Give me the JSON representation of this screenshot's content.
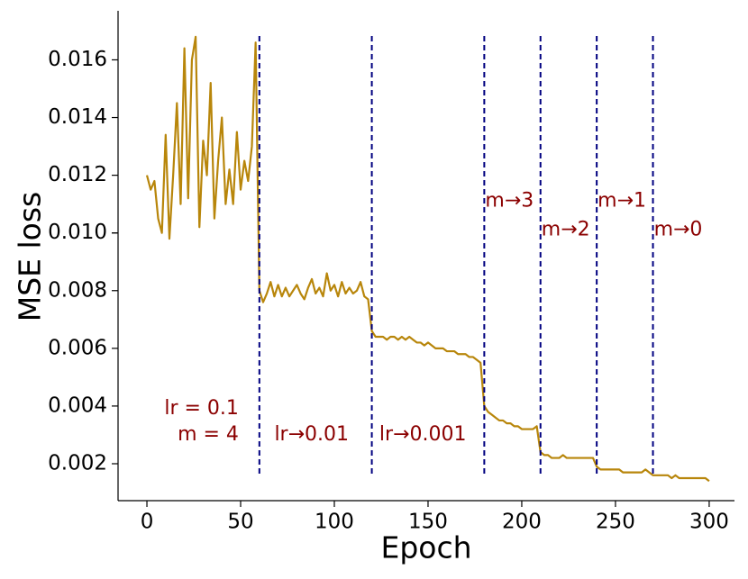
{
  "chart_data": {
    "type": "line",
    "xlabel": "Epoch",
    "ylabel": "MSE loss",
    "x": [
      0,
      2,
      4,
      6,
      8,
      10,
      12,
      14,
      16,
      18,
      20,
      22,
      24,
      26,
      28,
      30,
      32,
      34,
      36,
      38,
      40,
      42,
      44,
      46,
      48,
      50,
      52,
      54,
      56,
      58,
      60,
      62,
      64,
      66,
      68,
      70,
      72,
      74,
      76,
      78,
      80,
      82,
      84,
      86,
      88,
      90,
      92,
      94,
      96,
      98,
      100,
      102,
      104,
      106,
      108,
      110,
      112,
      114,
      116,
      118,
      120,
      122,
      124,
      126,
      128,
      130,
      132,
      134,
      136,
      138,
      140,
      142,
      144,
      146,
      148,
      150,
      152,
      154,
      156,
      158,
      160,
      162,
      164,
      166,
      168,
      170,
      172,
      174,
      176,
      178,
      180,
      182,
      184,
      186,
      188,
      190,
      192,
      194,
      196,
      198,
      200,
      202,
      204,
      206,
      208,
      210,
      212,
      214,
      216,
      218,
      220,
      222,
      224,
      226,
      228,
      230,
      232,
      234,
      236,
      238,
      240,
      242,
      244,
      246,
      248,
      250,
      252,
      254,
      256,
      258,
      260,
      262,
      264,
      266,
      268,
      270,
      272,
      274,
      276,
      278,
      280,
      282,
      284,
      286,
      288,
      290,
      292,
      294,
      296,
      298,
      300
    ],
    "series": [
      {
        "name": "MSE loss",
        "color": "#b8860b",
        "values": [
          0.012,
          0.0115,
          0.0118,
          0.0105,
          0.01,
          0.0134,
          0.0098,
          0.012,
          0.0145,
          0.011,
          0.0164,
          0.0112,
          0.016,
          0.0168,
          0.0102,
          0.0132,
          0.012,
          0.0152,
          0.0105,
          0.0125,
          0.014,
          0.011,
          0.0122,
          0.011,
          0.0135,
          0.0115,
          0.0125,
          0.0118,
          0.013,
          0.0166,
          0.008,
          0.0076,
          0.0079,
          0.0083,
          0.0078,
          0.0082,
          0.0078,
          0.0081,
          0.0078,
          0.008,
          0.0082,
          0.0079,
          0.0077,
          0.0081,
          0.0084,
          0.0079,
          0.0081,
          0.0078,
          0.0086,
          0.008,
          0.0082,
          0.0078,
          0.0083,
          0.0079,
          0.0081,
          0.0079,
          0.008,
          0.0083,
          0.0078,
          0.0077,
          0.0066,
          0.0064,
          0.0064,
          0.0064,
          0.0063,
          0.0064,
          0.0064,
          0.0063,
          0.0064,
          0.0063,
          0.0064,
          0.0063,
          0.0062,
          0.0062,
          0.0061,
          0.0062,
          0.0061,
          0.006,
          0.006,
          0.006,
          0.0059,
          0.0059,
          0.0059,
          0.0058,
          0.0058,
          0.0058,
          0.0057,
          0.0057,
          0.0056,
          0.0055,
          0.004,
          0.0038,
          0.0037,
          0.0036,
          0.0035,
          0.0035,
          0.0034,
          0.0034,
          0.0033,
          0.0033,
          0.0032,
          0.0032,
          0.0032,
          0.0032,
          0.0033,
          0.0024,
          0.0023,
          0.0023,
          0.0022,
          0.0022,
          0.0022,
          0.0023,
          0.0022,
          0.0022,
          0.0022,
          0.0022,
          0.0022,
          0.0022,
          0.0022,
          0.0022,
          0.0019,
          0.0018,
          0.0018,
          0.0018,
          0.0018,
          0.0018,
          0.0018,
          0.0017,
          0.0017,
          0.0017,
          0.0017,
          0.0017,
          0.0017,
          0.0018,
          0.0017,
          0.0016,
          0.0016,
          0.0016,
          0.0016,
          0.0016,
          0.0015,
          0.0016,
          0.0015,
          0.0015,
          0.0015,
          0.0015,
          0.0015,
          0.0015,
          0.0015,
          0.0015,
          0.0014
        ]
      }
    ],
    "xlim": [
      -15.4,
      313.5
    ],
    "ylim": [
      0.00072,
      0.0177
    ],
    "xticks": [
      0,
      50,
      100,
      150,
      200,
      250,
      300
    ],
    "yticks": [
      0.002,
      0.004,
      0.006,
      0.008,
      0.01,
      {
        "value": 0.01,
        "label": "0.010"
      },
      0.012,
      0.014,
      0.016
    ],
    "vlines": [
      60,
      120,
      180,
      210,
      240,
      270
    ],
    "vline_color": "#000080",
    "annotation_color": "#8b0000",
    "annotations": [
      {
        "text": "lr = 0.1",
        "x": 49,
        "y": 0.0039
      },
      {
        "text": "m = 4",
        "x": 49,
        "y": 0.003
      },
      {
        "text": "lr→0.01",
        "x": 68,
        "y": 0.003
      },
      {
        "text": "lr→0.001",
        "x": 124,
        "y": 0.003
      },
      {
        "text": "m→3",
        "x": 180.5,
        "y": 0.0111
      },
      {
        "text": "m→2",
        "x": 210.5,
        "y": 0.0101
      },
      {
        "text": "m→1",
        "x": 240.5,
        "y": 0.0111
      },
      {
        "text": "m→0",
        "x": 270.5,
        "y": 0.0101
      }
    ]
  }
}
